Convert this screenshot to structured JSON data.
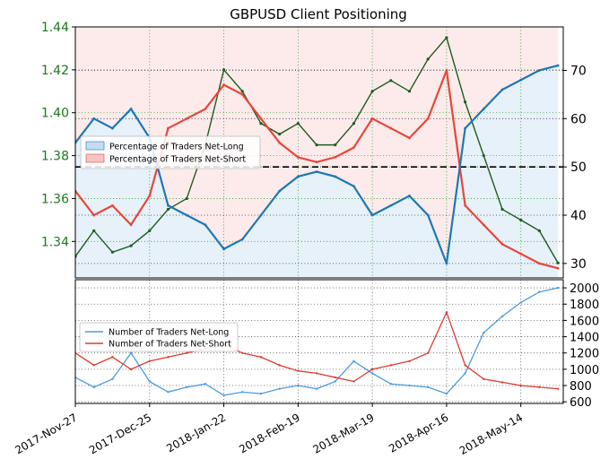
{
  "chart_data": [
    {
      "type": "area",
      "title": "GBPUSD Client Positioning",
      "x_ticks": [
        "2017-Nov-27",
        "2017-Dec-25",
        "2018-Jan-22",
        "2018-Feb-19",
        "2018-Mar-19",
        "2018-Apr-16",
        "2018-May-14"
      ],
      "x_range": [
        "2017-Nov-27",
        "2018-May-30"
      ],
      "left_axis": {
        "ticks": [
          "1.34",
          "1.36",
          "1.38",
          "1.40",
          "1.42",
          "1.44"
        ],
        "range": [
          1.323,
          1.44
        ],
        "color": "#1a7a1a"
      },
      "right_axis": {
        "ticks": [
          "30",
          "40",
          "50",
          "60",
          "70"
        ],
        "range": [
          27,
          79
        ]
      },
      "legend": {
        "position": "center-left",
        "entries": [
          "Percentage of Traders Net-Long",
          "Percentage of Traders Net-Short"
        ]
      },
      "reference_line": 50,
      "series": [
        {
          "name": "Percentage of Traders Net-Long",
          "color": "#1f77b4",
          "x": [
            "2017-Nov-27",
            "2017-Dec-04",
            "2017-Dec-11",
            "2017-Dec-18",
            "2017-Dec-25",
            "2018-Jan-01",
            "2018-Jan-08",
            "2018-Jan-15",
            "2018-Jan-22",
            "2018-Jan-29",
            "2018-Feb-05",
            "2018-Feb-12",
            "2018-Feb-19",
            "2018-Feb-26",
            "2018-Mar-05",
            "2018-Mar-12",
            "2018-Mar-19",
            "2018-Mar-26",
            "2018-Apr-02",
            "2018-Apr-09",
            "2018-Apr-16",
            "2018-Apr-23",
            "2018-Apr-30",
            "2018-May-07",
            "2018-May-14",
            "2018-May-21",
            "2018-May-28"
          ],
          "values": [
            55,
            60,
            58,
            62,
            56,
            42,
            40,
            38,
            33,
            35,
            40,
            45,
            48,
            49,
            48,
            46,
            40,
            42,
            44,
            40,
            30,
            58,
            62,
            66,
            68,
            70,
            71
          ]
        },
        {
          "name": "Percentage of Traders Net-Short",
          "color": "#e8463a",
          "x": [
            "2017-Nov-27",
            "2017-Dec-04",
            "2017-Dec-11",
            "2017-Dec-18",
            "2017-Dec-25",
            "2018-Jan-01",
            "2018-Jan-08",
            "2018-Jan-15",
            "2018-Jan-22",
            "2018-Jan-29",
            "2018-Feb-05",
            "2018-Feb-12",
            "2018-Feb-19",
            "2018-Feb-26",
            "2018-Mar-05",
            "2018-Mar-12",
            "2018-Mar-19",
            "2018-Mar-26",
            "2018-Apr-02",
            "2018-Apr-09",
            "2018-Apr-16",
            "2018-Apr-23",
            "2018-Apr-30",
            "2018-May-07",
            "2018-May-14",
            "2018-May-21",
            "2018-May-28"
          ],
          "values": [
            45,
            40,
            42,
            38,
            44,
            58,
            60,
            62,
            67,
            65,
            60,
            55,
            52,
            51,
            52,
            54,
            60,
            58,
            56,
            60,
            70,
            42,
            38,
            34,
            32,
            30,
            29
          ]
        }
      ],
      "price": {
        "name": "GBPUSD",
        "x": [
          "2017-Nov-27",
          "2017-Dec-04",
          "2017-Dec-11",
          "2017-Dec-18",
          "2017-Dec-25",
          "2018-Jan-01",
          "2018-Jan-08",
          "2018-Jan-15",
          "2018-Jan-22",
          "2018-Jan-29",
          "2018-Feb-05",
          "2018-Feb-12",
          "2018-Feb-19",
          "2018-Feb-26",
          "2018-Mar-05",
          "2018-Mar-12",
          "2018-Mar-19",
          "2018-Mar-26",
          "2018-Apr-02",
          "2018-Apr-09",
          "2018-Apr-16",
          "2018-Apr-23",
          "2018-Apr-30",
          "2018-May-07",
          "2018-May-14",
          "2018-May-21",
          "2018-May-28"
        ],
        "values": [
          1.333,
          1.345,
          1.335,
          1.338,
          1.345,
          1.355,
          1.36,
          1.385,
          1.42,
          1.41,
          1.395,
          1.39,
          1.395,
          1.385,
          1.385,
          1.395,
          1.41,
          1.415,
          1.41,
          1.425,
          1.435,
          1.405,
          1.38,
          1.355,
          1.35,
          1.345,
          1.33
        ]
      }
    },
    {
      "type": "line",
      "y_ticks": [
        "600",
        "800",
        "1000",
        "1200",
        "1400",
        "1600",
        "1800",
        "2000"
      ],
      "y_range": [
        580,
        2100
      ],
      "legend": {
        "position": "center-left",
        "entries": [
          "Number of Traders Net-Long",
          "Number of Traders Net-Short"
        ]
      },
      "series": [
        {
          "name": "Number of Traders Net-Long",
          "color": "#4a9de0",
          "x": [
            "2017-Nov-27",
            "2017-Dec-04",
            "2017-Dec-11",
            "2017-Dec-18",
            "2017-Dec-25",
            "2018-Jan-01",
            "2018-Jan-08",
            "2018-Jan-15",
            "2018-Jan-22",
            "2018-Jan-29",
            "2018-Feb-05",
            "2018-Feb-12",
            "2018-Feb-19",
            "2018-Feb-26",
            "2018-Mar-05",
            "2018-Mar-12",
            "2018-Mar-19",
            "2018-Mar-26",
            "2018-Apr-02",
            "2018-Apr-09",
            "2018-Apr-16",
            "2018-Apr-23",
            "2018-Apr-30",
            "2018-May-07",
            "2018-May-14",
            "2018-May-21",
            "2018-May-28"
          ],
          "values": [
            900,
            780,
            880,
            1200,
            850,
            720,
            780,
            820,
            680,
            720,
            700,
            760,
            800,
            760,
            850,
            1100,
            950,
            820,
            800,
            780,
            700,
            950,
            1450,
            1650,
            1820,
            1950,
            2000
          ]
        },
        {
          "name": "Number of Traders Net-Short",
          "color": "#e03b2e",
          "x": [
            "2017-Nov-27",
            "2017-Dec-04",
            "2017-Dec-11",
            "2017-Dec-18",
            "2017-Dec-25",
            "2018-Jan-01",
            "2018-Jan-08",
            "2018-Jan-15",
            "2018-Jan-22",
            "2018-Jan-29",
            "2018-Feb-05",
            "2018-Feb-12",
            "2018-Feb-19",
            "2018-Feb-26",
            "2018-Mar-05",
            "2018-Mar-12",
            "2018-Mar-19",
            "2018-Mar-26",
            "2018-Apr-02",
            "2018-Apr-09",
            "2018-Apr-16",
            "2018-Apr-23",
            "2018-Apr-30",
            "2018-May-07",
            "2018-May-14",
            "2018-May-21",
            "2018-May-28"
          ],
          "values": [
            1200,
            1050,
            1150,
            1000,
            1100,
            1150,
            1200,
            1250,
            1300,
            1200,
            1150,
            1050,
            980,
            950,
            900,
            850,
            1000,
            1050,
            1100,
            1200,
            1700,
            1050,
            880,
            840,
            800,
            780,
            760
          ]
        }
      ]
    }
  ]
}
